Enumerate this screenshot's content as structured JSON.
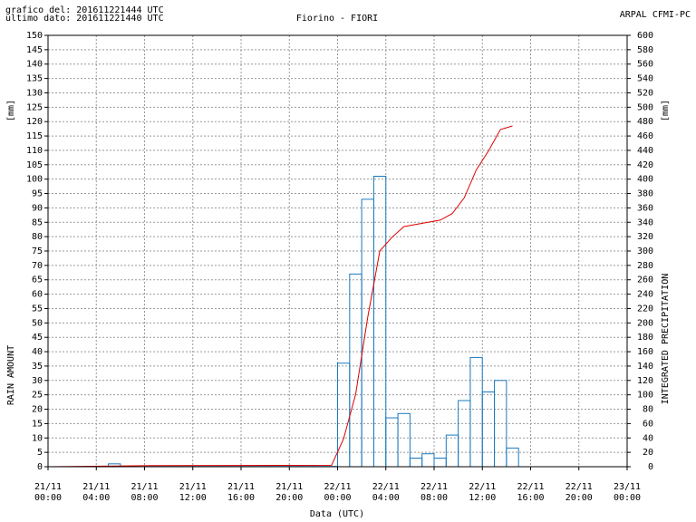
{
  "header": {
    "generated": "grafico del: 201611221444 UTC",
    "last_data": "ultimo dato: 201611221440 UTC",
    "agency": "ARPAL CFMI-PC"
  },
  "chart_data": {
    "type": "histogram",
    "title": "Fiorino - FIORI",
    "x_label": "Data (UTC)",
    "y_label": "RAIN AMOUNT",
    "y_unit": "[mm]",
    "y2_label": "INTEGRATED PRECIPITATION",
    "y2_unit": "[mm]",
    "xlim": [
      "21/11 00:00",
      "23/11 00:00"
    ],
    "xticks": [
      {
        "date": "21/11",
        "time": "00:00"
      },
      {
        "date": "21/11",
        "time": "04:00"
      },
      {
        "date": "21/11",
        "time": "08:00"
      },
      {
        "date": "21/11",
        "time": "12:00"
      },
      {
        "date": "21/11",
        "time": "16:00"
      },
      {
        "date": "21/11",
        "time": "20:00"
      },
      {
        "date": "22/11",
        "time": "00:00"
      },
      {
        "date": "22/11",
        "time": "04:00"
      },
      {
        "date": "22/11",
        "time": "08:00"
      },
      {
        "date": "22/11",
        "time": "12:00"
      },
      {
        "date": "22/11",
        "time": "16:00"
      },
      {
        "date": "22/11",
        "time": "20:00"
      },
      {
        "date": "23/11",
        "time": "00:00"
      }
    ],
    "ylim": [
      0,
      150
    ],
    "yticks": [
      0,
      5,
      10,
      15,
      20,
      25,
      30,
      35,
      40,
      45,
      50,
      55,
      60,
      65,
      70,
      75,
      80,
      85,
      90,
      95,
      100,
      105,
      110,
      115,
      120,
      125,
      130,
      135,
      140,
      145,
      150
    ],
    "y2lim": [
      0,
      600
    ],
    "y2ticks": [
      0,
      20,
      40,
      60,
      80,
      100,
      120,
      140,
      160,
      180,
      200,
      220,
      240,
      260,
      280,
      300,
      320,
      340,
      360,
      380,
      400,
      420,
      440,
      460,
      480,
      500,
      520,
      540,
      560,
      580,
      600
    ],
    "grid": true,
    "bins": [
      "21/11 05:00",
      "21/11 06:00",
      "21/11 07:00",
      "21/11 08:00",
      "21/11 09:00",
      "21/11 10:00",
      "21/11 11:00",
      "21/11 12:00",
      "21/11 13:00",
      "21/11 14:00",
      "21/11 15:00",
      "21/11 16:00",
      "21/11 17:00",
      "21/11 18:00",
      "21/11 19:00",
      "21/11 20:00",
      "21/11 21:00",
      "21/11 22:00",
      "21/11 23:00",
      "22/11 00:00",
      "22/11 01:00",
      "22/11 02:00",
      "22/11 03:00",
      "22/11 04:00",
      "22/11 05:00",
      "22/11 06:00",
      "22/11 07:00",
      "22/11 08:00",
      "22/11 09:00",
      "22/11 10:00",
      "22/11 11:00",
      "22/11 12:00",
      "22/11 13:00",
      "22/11 14:00",
      "22/11 15:00"
    ],
    "counts": [
      1,
      0,
      0,
      0.1,
      0.1,
      0.1,
      0.1,
      0.1,
      0.1,
      0.1,
      0.1,
      0.1,
      0.1,
      0.1,
      0.1,
      0.1,
      0.1,
      0.1,
      0.1,
      36,
      67,
      93,
      101,
      17,
      18.5,
      3,
      4.5,
      3,
      11,
      23,
      38,
      26,
      30,
      6.5
    ],
    "color": "#1a7ac0",
    "line": {
      "type": "line",
      "axis": "y2",
      "color": "#e00000",
      "x": [
        "21/11 00:00",
        "21/11 05:30",
        "21/11 08:30",
        "21/11 23:30",
        "22/11 00:30",
        "22/11 01:30",
        "22/11 02:30",
        "22/11 03:30",
        "22/11 04:30",
        "22/11 05:30",
        "22/11 06:30",
        "22/11 07:30",
        "22/11 08:30",
        "22/11 09:30",
        "22/11 10:30",
        "22/11 11:30",
        "22/11 12:30",
        "22/11 13:30",
        "22/11 14:30"
      ],
      "values": [
        0,
        1,
        1.5,
        2,
        39,
        101,
        208,
        300,
        319,
        334,
        337,
        340,
        343,
        352,
        374,
        413,
        439,
        469,
        474
      ]
    }
  }
}
